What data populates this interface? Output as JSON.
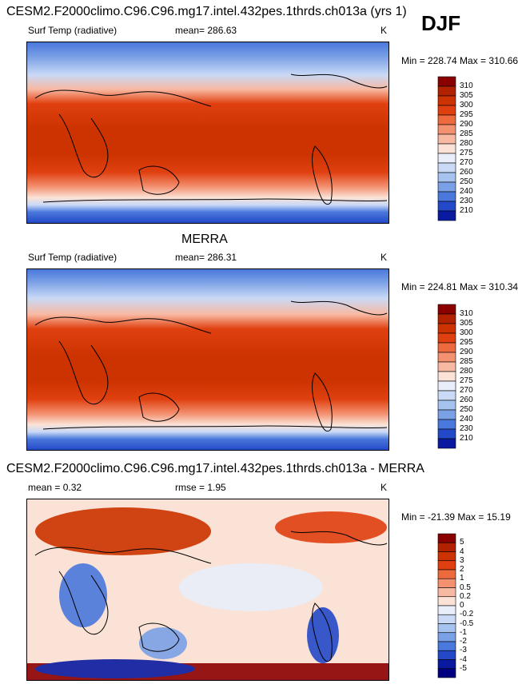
{
  "season": "DJF",
  "panels": [
    {
      "title": "CESM2.F2000climo.C96.C96.mg17.intel.432pes.1thrds.ch013a (yrs 1)",
      "left_label": "Surf Temp (radiative)",
      "center_label": "mean= 286.63",
      "units": "K",
      "minmax": "Min = 228.74 Max = 310.66",
      "kind": "abs"
    },
    {
      "title": "MERRA",
      "left_label": "Surf Temp (radiative)",
      "center_label": "mean= 286.31",
      "units": "K",
      "minmax": "Min = 224.81 Max = 310.34",
      "kind": "abs"
    },
    {
      "title": "CESM2.F2000climo.C96.C96.mg17.intel.432pes.1thrds.ch013a - MERRA",
      "left_label": "mean =  0.32",
      "center_label": "rmse =   1.95",
      "units": "K",
      "minmax": "Min = -21.39 Max =  15.19",
      "kind": "diff"
    }
  ],
  "colorbars": {
    "abs": {
      "labels": [
        "310",
        "305",
        "300",
        "295",
        "290",
        "285",
        "280",
        "275",
        "270",
        "260",
        "250",
        "240",
        "230",
        "210"
      ],
      "colors": [
        "#8b0000",
        "#b22200",
        "#cc3300",
        "#e04010",
        "#ec6a3e",
        "#f39171",
        "#f8b9a2",
        "#fbe2d6",
        "#e9eefa",
        "#c9d9f6",
        "#a6c2ef",
        "#7aa0e6",
        "#4a78dc",
        "#2449c8",
        "#0a1aa0"
      ]
    },
    "diff": {
      "labels": [
        "5",
        "4",
        "3",
        "2",
        "1",
        "0.5",
        "0.2",
        "0",
        "-0.2",
        "-0.5",
        "-1",
        "-2",
        "-3",
        "-4",
        "-5"
      ],
      "colors": [
        "#8b0000",
        "#b22200",
        "#cc3300",
        "#e04010",
        "#ec6a3e",
        "#f39171",
        "#f8b9a2",
        "#fbe2d6",
        "#e9eefa",
        "#c9d9f6",
        "#a6c2ef",
        "#7aa0e6",
        "#4a78dc",
        "#2449c8",
        "#0a1aa0",
        "#000080"
      ]
    }
  },
  "chart_data": [
    {
      "type": "heatmap",
      "title": "CESM2.F2000climo.C96.C96.mg17.intel.432pes.1thrds.ch013a (yrs 1)",
      "variable": "Surf Temp (radiative)",
      "units": "K",
      "mean": 286.63,
      "min": 228.74,
      "max": 310.66,
      "levels": [
        210,
        230,
        240,
        250,
        260,
        270,
        275,
        280,
        285,
        290,
        295,
        300,
        305,
        310
      ]
    },
    {
      "type": "heatmap",
      "title": "MERRA",
      "variable": "Surf Temp (radiative)",
      "units": "K",
      "mean": 286.31,
      "min": 224.81,
      "max": 310.34,
      "levels": [
        210,
        230,
        240,
        250,
        260,
        270,
        275,
        280,
        285,
        290,
        295,
        300,
        305,
        310
      ]
    },
    {
      "type": "heatmap",
      "title": "CESM2.F2000climo.C96.C96.mg17.intel.432pes.1thrds.ch013a - MERRA",
      "units": "K",
      "mean": 0.32,
      "rmse": 1.95,
      "min": -21.39,
      "max": 15.19,
      "levels": [
        -5,
        -4,
        -3,
        -2,
        -1,
        -0.5,
        -0.2,
        0,
        0.2,
        0.5,
        1,
        2,
        3,
        4,
        5
      ]
    }
  ]
}
